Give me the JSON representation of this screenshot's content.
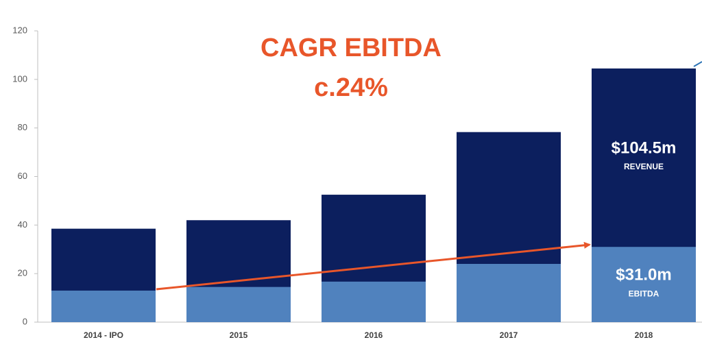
{
  "chart_data": {
    "type": "bar",
    "categories": [
      "2014 - IPO",
      "2015",
      "2016",
      "2017",
      "2018"
    ],
    "series": [
      {
        "name": "REVENUE",
        "color": "#0c1f5e",
        "values": [
          38.5,
          42,
          52.5,
          78.3,
          104.5
        ],
        "value_labels": [
          null,
          null,
          null,
          null,
          "$104.5m"
        ]
      },
      {
        "name": "EBITDA",
        "color": "#5082be",
        "values": [
          13,
          14.5,
          16.7,
          24,
          31
        ],
        "value_labels": [
          null,
          null,
          null,
          null,
          "$31.0m"
        ]
      }
    ],
    "annotation": [
      "CAGR EBITDA",
      "c.24%"
    ],
    "annotation_color": "#e8562a",
    "ylim": [
      0,
      120
    ],
    "yticks": [
      0,
      20,
      40,
      60,
      80,
      100,
      120
    ],
    "grid": false
  }
}
